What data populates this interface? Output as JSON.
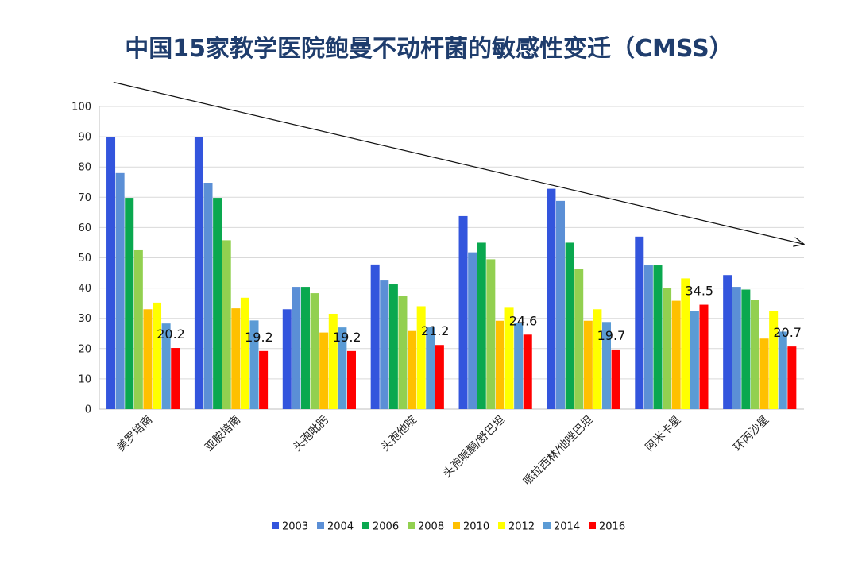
{
  "title": "中国15家教学医院鲍曼不动杆菌的敏感性变迁（CMSS）",
  "chart_data": {
    "type": "bar",
    "title": "中国15家教学医院鲍曼不动杆菌的敏感性变迁（CMSS）",
    "xlabel": "",
    "ylabel": "",
    "ylim": [
      0,
      100
    ],
    "yticks": [
      0,
      10,
      20,
      30,
      40,
      50,
      60,
      70,
      80,
      90,
      100
    ],
    "grid": true,
    "legend_position": "bottom",
    "categories": [
      "美罗培南",
      "亚胺培南",
      "头孢吡肟",
      "头孢他啶",
      "头孢哌酮/舒巴坦",
      "哌拉西林/他唑巴坦",
      "阿米卡星",
      "环丙沙星"
    ],
    "series": [
      {
        "name": "2003",
        "color": "#3355dd",
        "values": [
          89.8,
          89.8,
          33.0,
          47.8,
          63.8,
          72.8,
          57.0,
          44.3
        ]
      },
      {
        "name": "2004",
        "color": "#5b8fd6",
        "values": [
          78.0,
          74.8,
          40.4,
          42.5,
          51.8,
          68.8,
          47.5,
          40.4
        ]
      },
      {
        "name": "2006",
        "color": "#0aa84f",
        "values": [
          69.8,
          69.8,
          40.4,
          41.2,
          55.0,
          55.0,
          47.5,
          39.5
        ]
      },
      {
        "name": "2008",
        "color": "#92d050",
        "values": [
          52.5,
          55.8,
          38.3,
          37.5,
          49.5,
          46.2,
          40.0,
          36.0
        ]
      },
      {
        "name": "2010",
        "color": "#ffc000",
        "values": [
          33.0,
          33.3,
          25.3,
          25.8,
          29.2,
          29.2,
          35.8,
          23.3
        ]
      },
      {
        "name": "2012",
        "color": "#ffff00",
        "values": [
          35.2,
          36.8,
          31.5,
          34.0,
          33.5,
          33.0,
          43.2,
          32.3
        ]
      },
      {
        "name": "2014",
        "color": "#5b9bd5",
        "values": [
          28.3,
          29.3,
          27.0,
          27.0,
          28.5,
          28.8,
          32.3,
          25.6
        ]
      },
      {
        "name": "2016",
        "color": "#ff0000",
        "values": [
          20.2,
          19.2,
          19.2,
          21.2,
          24.6,
          19.7,
          34.5,
          20.7
        ]
      }
    ],
    "data_labels": [
      "20.2",
      "19.2",
      "19.2",
      "21.2",
      "24.6",
      "19.7",
      "34.5",
      "20.7"
    ],
    "trend_arrow": {
      "from": [
        -0.2,
        108
      ],
      "to": [
        8.0,
        54.5
      ]
    }
  }
}
